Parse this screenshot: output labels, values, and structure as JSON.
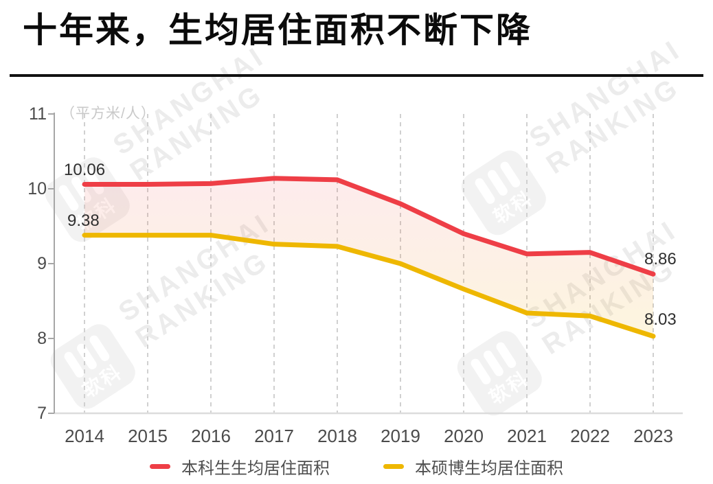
{
  "title": "十年来，生均居住面积不断下降",
  "watermark": {
    "line1": "SHANGHAI",
    "line2": "RANKING",
    "logo_text": "软科",
    "color": "#ececec"
  },
  "chart_data": {
    "type": "line",
    "title": "十年来，生均居住面积不断下降",
    "unit_label": "（平方米/人）",
    "x": [
      "2014",
      "2015",
      "2016",
      "2017",
      "2018",
      "2019",
      "2020",
      "2021",
      "2022",
      "2023"
    ],
    "series": [
      {
        "name": "本科生生均居住面积",
        "color": "#ee3e46",
        "values": [
          10.06,
          10.06,
          10.07,
          10.14,
          10.12,
          9.8,
          9.4,
          9.13,
          9.15,
          8.86
        ]
      },
      {
        "name": "本硕博生均居住面积",
        "color": "#eeb700",
        "values": [
          9.38,
          9.38,
          9.38,
          9.26,
          9.23,
          9.0,
          8.66,
          8.34,
          8.3,
          8.03
        ]
      }
    ],
    "ylim": [
      7,
      11
    ],
    "yticks": [
      "7",
      "8",
      "9",
      "10",
      "11"
    ],
    "grid": "vertical-dashed",
    "legend_position": "bottom",
    "band_fill_between_series": true,
    "annotations": [
      {
        "text": "10.06",
        "year": "2014",
        "series_index": 0
      },
      {
        "text": "9.38",
        "year": "2014",
        "series_index": 1
      },
      {
        "text": "8.86",
        "year": "2023",
        "series_index": 0
      },
      {
        "text": "8.03",
        "year": "2023",
        "series_index": 1
      }
    ],
    "colors": {
      "grid": "#d0d0d0",
      "y_axis": "#a6a6a6",
      "x_axis": "#dcdcdc",
      "tick_label": "#4b4b4b",
      "data_label": "#2f2f2f",
      "unit_label": "#c9c9c9"
    }
  }
}
